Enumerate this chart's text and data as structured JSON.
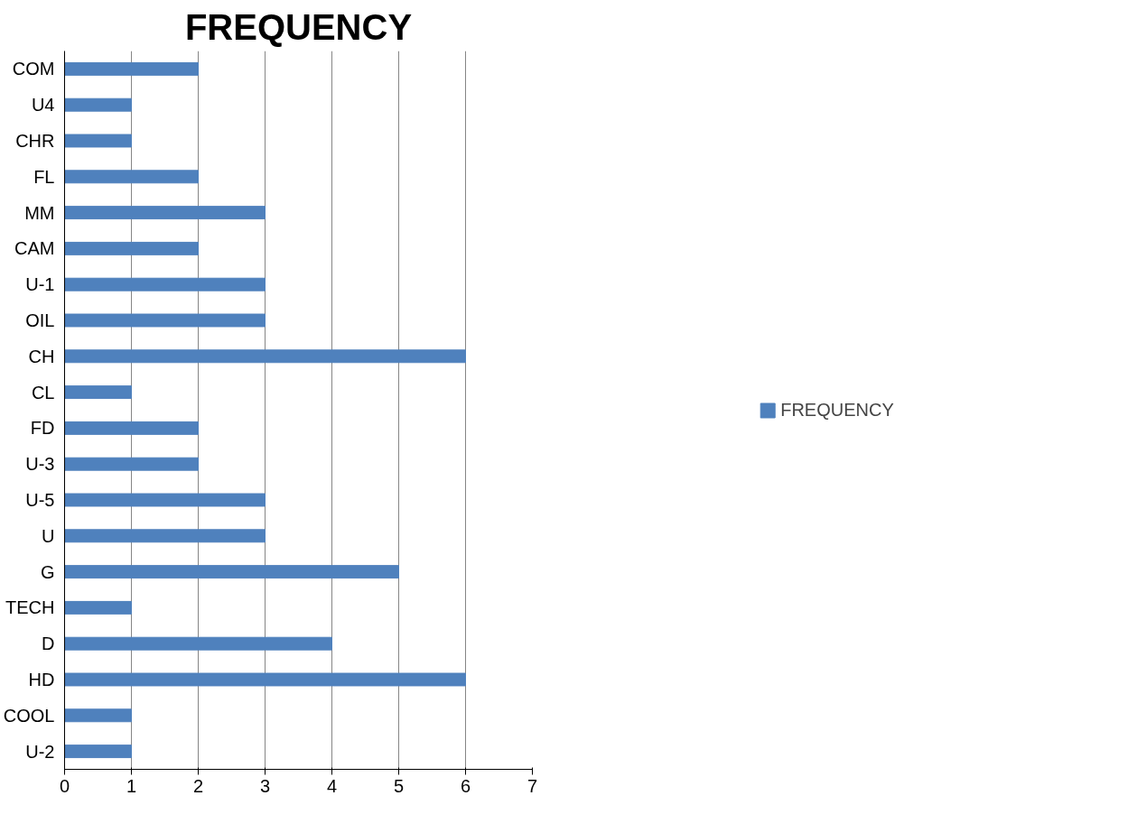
{
  "chart_data": {
    "type": "bar",
    "orientation": "horizontal",
    "title": "FREQUENCY",
    "categories": [
      "COM",
      "U4",
      "CHR",
      "FL",
      "MM",
      "CAM",
      "U-1",
      "OIL",
      "CH",
      "CL",
      "FD",
      "U-3",
      "U-5",
      "U",
      "G",
      "TECH",
      "D",
      "HD",
      "COOL",
      "U-2"
    ],
    "series": [
      {
        "name": "FREQUENCY",
        "color": "#4f81bd",
        "values": [
          2,
          1,
          1,
          2,
          3,
          2,
          3,
          3,
          6,
          1,
          2,
          2,
          3,
          3,
          5,
          1,
          4,
          6,
          1,
          1
        ]
      }
    ],
    "xlim": [
      0,
      7
    ],
    "xticks": [
      0,
      1,
      2,
      3,
      4,
      5,
      6,
      7
    ],
    "grid": "x",
    "legend": "right"
  }
}
